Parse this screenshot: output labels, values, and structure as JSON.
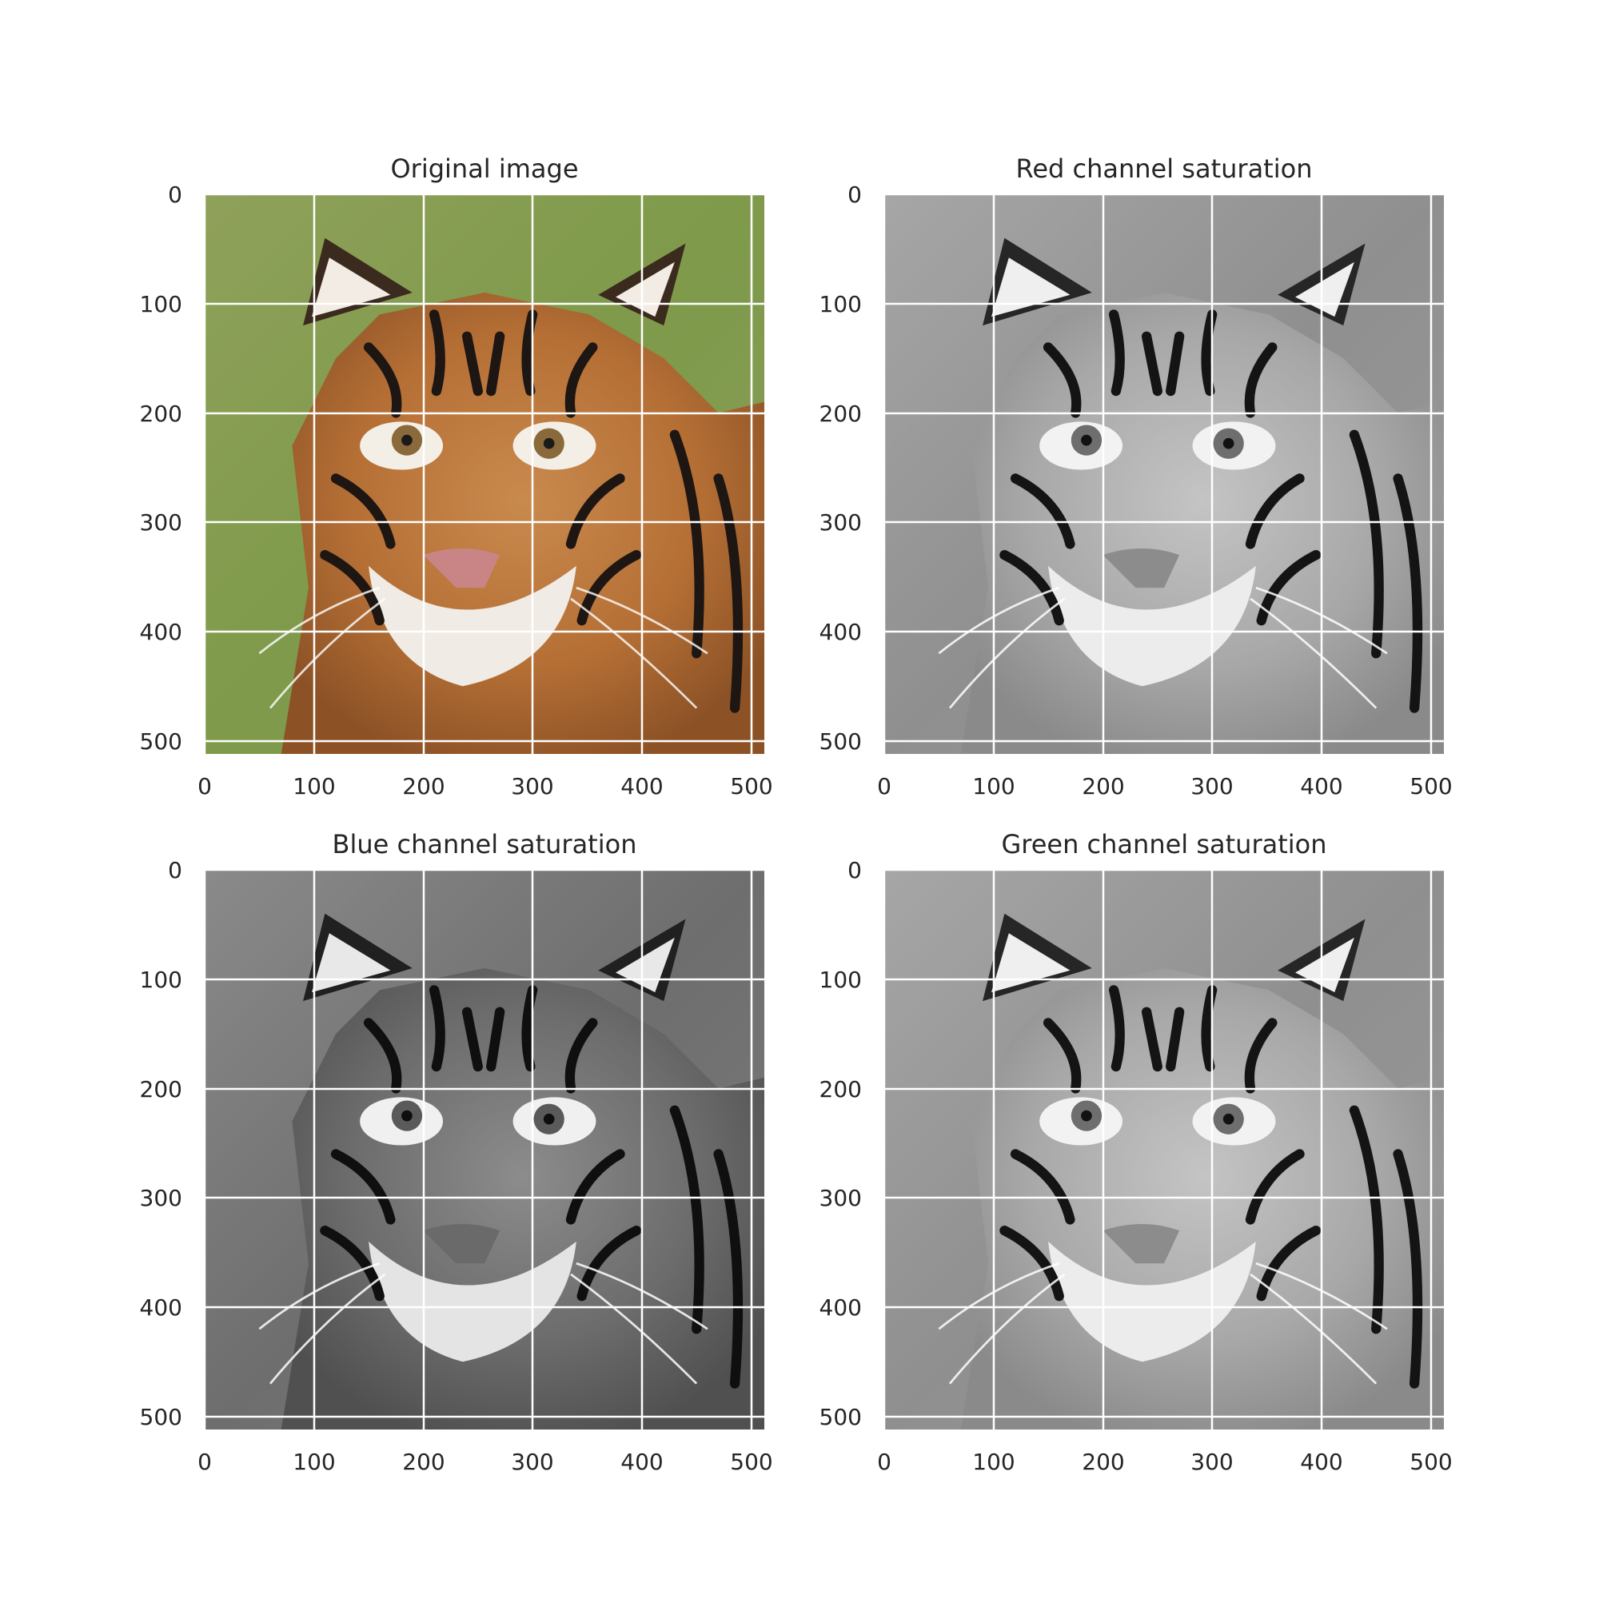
{
  "figure": {
    "background": "#ffffff",
    "grid_color": "#ffffff",
    "text_color": "#262626",
    "panels": [
      {
        "id": "original",
        "title": "Original image",
        "image": "color photograph of a tiger's face in front of green grass",
        "colormap": "rgb",
        "xticks": [
          "0",
          "100",
          "200",
          "300",
          "400",
          "500"
        ],
        "yticks": [
          "0",
          "100",
          "200",
          "300",
          "400",
          "500"
        ]
      },
      {
        "id": "red",
        "title": "Red channel saturation",
        "image": "grayscale rendering of the tiger photo (red channel)",
        "colormap": "gray",
        "xticks": [
          "0",
          "100",
          "200",
          "300",
          "400",
          "500"
        ],
        "yticks": [
          "0",
          "100",
          "200",
          "300",
          "400",
          "500"
        ]
      },
      {
        "id": "blue",
        "title": "Blue channel saturation",
        "image": "grayscale rendering of the tiger photo (blue channel)",
        "colormap": "gray",
        "xticks": [
          "0",
          "100",
          "200",
          "300",
          "400",
          "500"
        ],
        "yticks": [
          "0",
          "100",
          "200",
          "300",
          "400",
          "500"
        ]
      },
      {
        "id": "green",
        "title": "Green channel saturation",
        "image": "grayscale rendering of the tiger photo (green channel)",
        "colormap": "gray",
        "xticks": [
          "0",
          "100",
          "200",
          "300",
          "400",
          "500"
        ],
        "yticks": [
          "0",
          "100",
          "200",
          "300",
          "400",
          "500"
        ]
      }
    ]
  }
}
